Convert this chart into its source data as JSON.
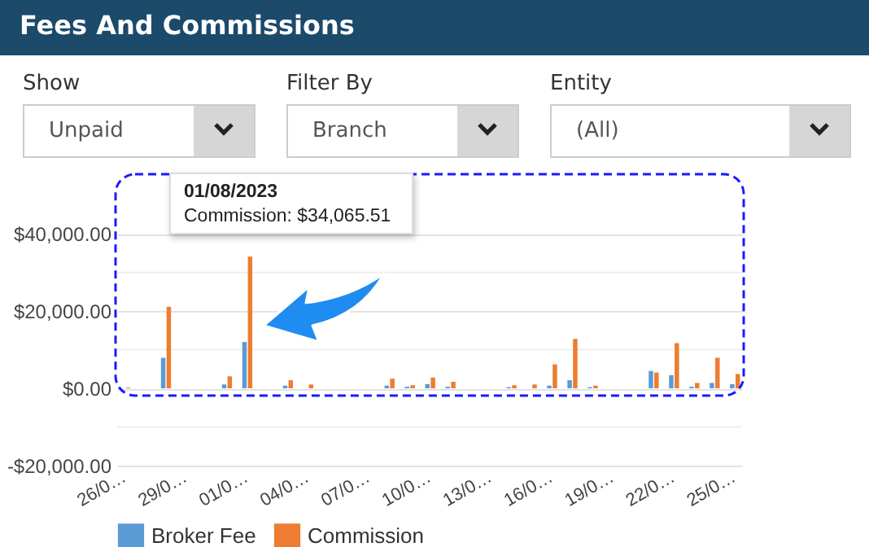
{
  "chart_data": {
    "type": "bar",
    "title": "Fees And Commissions",
    "categories": [
      "26/0…",
      null,
      null,
      "29/0…",
      null,
      null,
      "01/0…",
      null,
      null,
      "04/0…",
      null,
      null,
      "07/0…",
      null,
      null,
      "10/0…",
      null,
      null,
      "13/0…",
      null,
      null,
      "16/0…",
      null,
      null,
      "19/0…",
      null,
      null,
      "22/0…",
      null,
      null,
      "25/0…"
    ],
    "series": [
      {
        "name": "Broker Fee",
        "color": "#5b9bd5",
        "values": [
          null,
          null,
          7900,
          null,
          null,
          1000,
          12000,
          null,
          700,
          null,
          null,
          null,
          null,
          700,
          400,
          1100,
          400,
          null,
          null,
          300,
          null,
          700,
          2100,
          300,
          null,
          null,
          4500,
          3400,
          400,
          1400,
          1100
        ]
      },
      {
        "name": "Commission",
        "color": "#ed7d31",
        "values": [
          200,
          null,
          21100,
          null,
          null,
          3100,
          34065.51,
          null,
          2100,
          1000,
          null,
          null,
          null,
          2500,
          800,
          2800,
          1700,
          null,
          null,
          800,
          1000,
          6200,
          12800,
          700,
          null,
          null,
          4100,
          11700,
          1400,
          7900,
          3700
        ]
      }
    ],
    "ylim": [
      -20000,
      55000
    ],
    "yticks": [
      {
        "value": -20000,
        "label": "-$20,000.00"
      },
      {
        "value": -10000,
        "label": null
      },
      {
        "value": 0,
        "label": "$0.00"
      },
      {
        "value": 10000,
        "label": null
      },
      {
        "value": 20000,
        "label": "$20,000.00"
      },
      {
        "value": 30000,
        "label": null
      },
      {
        "value": 40000,
        "label": "$40,000.00"
      }
    ],
    "grid": "y",
    "legend": "bottom",
    "annotations": [
      "Show",
      "Unpaid",
      "Filter By",
      "Branch",
      "Entity",
      "(All)",
      "01/08/2023",
      "Commission: $34,065.51"
    ]
  }
}
